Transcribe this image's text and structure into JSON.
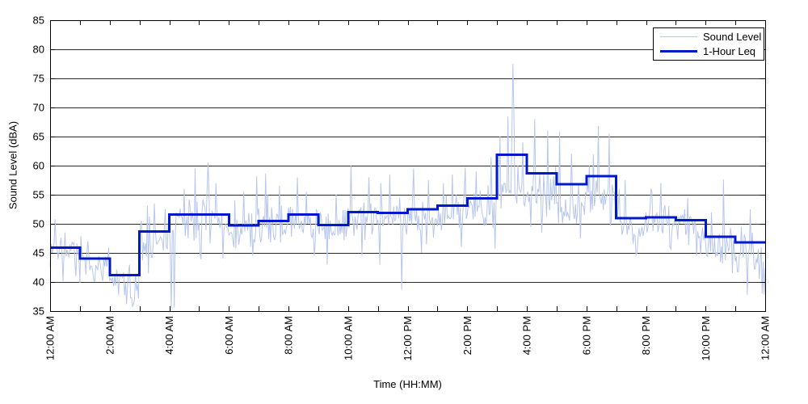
{
  "chart_data": {
    "type": "line",
    "title": "",
    "xlabel": "Time (HH:MM)",
    "ylabel": "Sound Level (dBA)",
    "ylim": [
      35,
      85
    ],
    "xlim_hours": [
      0,
      24
    ],
    "y_ticks": [
      35,
      40,
      45,
      50,
      55,
      60,
      65,
      70,
      75,
      80,
      85
    ],
    "x_tick_every_hours": 1,
    "x_label_every_hours": 2,
    "x_tick_labels": [
      "12:00 AM",
      "2:00 AM",
      "4:00 AM",
      "6:00 AM",
      "8:00 AM",
      "10:00 AM",
      "12:00 PM",
      "2:00 PM",
      "4:00 PM",
      "6:00 PM",
      "8:00 PM",
      "10:00 PM",
      "12:00 AM"
    ],
    "grid": "horizontal-solid",
    "legend_position": "top-right",
    "legend": [
      {
        "label": "Sound Level",
        "color": "#b7c6f0",
        "line_width": 1
      },
      {
        "label": "1-Hour Leq",
        "color": "#0018cc",
        "line_width": 3
      }
    ],
    "series": [
      {
        "name": "Sound Level",
        "type": "noisy-trace",
        "synthesis": {
          "seed": 7,
          "samples_per_hour": 30,
          "hourly_mean": [
            45.2,
            43.2,
            39.6,
            47.2,
            49.6,
            50.2,
            48.8,
            49.5,
            50.6,
            48.8,
            50.8,
            50.9,
            51.6,
            52.2,
            52.8,
            55.6,
            55.0,
            53.8,
            55.0,
            49.9,
            50.2,
            49.2,
            46.3,
            44.4
          ],
          "hourly_amp": [
            2.2,
            2.0,
            2.2,
            2.8,
            3.0,
            2.6,
            2.4,
            2.4,
            2.4,
            2.4,
            2.6,
            2.6,
            2.4,
            2.4,
            2.6,
            3.4,
            3.2,
            2.8,
            2.8,
            2.4,
            2.2,
            2.2,
            2.2,
            2.6
          ],
          "spikes": [
            [
              0.15,
              50.8
            ],
            [
              0.5,
              48.5
            ],
            [
              0.85,
              41.0
            ],
            [
              1.25,
              47.0
            ],
            [
              1.75,
              40.2
            ],
            [
              2.3,
              37.8
            ],
            [
              2.55,
              36.2
            ],
            [
              2.75,
              35.8
            ],
            [
              2.95,
              37.2
            ],
            [
              3.05,
              50.5
            ],
            [
              3.3,
              41.5
            ],
            [
              3.5,
              53.5
            ],
            [
              3.85,
              52.5
            ],
            [
              4.08,
              35.2
            ],
            [
              4.15,
              35.6
            ],
            [
              4.5,
              56.0
            ],
            [
              4.85,
              59.5
            ],
            [
              5.3,
              60.5
            ],
            [
              5.55,
              57.0
            ],
            [
              5.8,
              44.0
            ],
            [
              6.2,
              54.0
            ],
            [
              6.5,
              55.5
            ],
            [
              6.8,
              44.5
            ],
            [
              7.3,
              55.0
            ],
            [
              7.7,
              56.5
            ],
            [
              8.3,
              58.0
            ],
            [
              8.6,
              55.5
            ],
            [
              8.85,
              44.5
            ],
            [
              9.3,
              43.0
            ],
            [
              9.6,
              55.0
            ],
            [
              10.1,
              60.0
            ],
            [
              10.45,
              44.5
            ],
            [
              10.7,
              58.0
            ],
            [
              11.1,
              57.0
            ],
            [
              11.4,
              58.5
            ],
            [
              11.8,
              38.7
            ],
            [
              12.2,
              59.5
            ],
            [
              12.45,
              45.0
            ],
            [
              12.7,
              57.5
            ],
            [
              13.2,
              57.0
            ],
            [
              13.5,
              58.5
            ],
            [
              13.8,
              46.0
            ],
            [
              14.3,
              59.0
            ],
            [
              14.8,
              61.5
            ],
            [
              15.1,
              65.0
            ],
            [
              15.35,
              68.5
            ],
            [
              15.5,
              65.5
            ],
            [
              15.53,
              77.5
            ],
            [
              15.57,
              69.0
            ],
            [
              15.7,
              60.0
            ],
            [
              15.85,
              64.0
            ],
            [
              16.25,
              68.0
            ],
            [
              16.5,
              48.5
            ],
            [
              16.7,
              66.0
            ],
            [
              17.1,
              65.8
            ],
            [
              17.5,
              62.0
            ],
            [
              17.8,
              47.5
            ],
            [
              18.1,
              60.0
            ],
            [
              18.4,
              66.8
            ],
            [
              18.75,
              65.5
            ],
            [
              19.1,
              56.0
            ],
            [
              19.3,
              57.5
            ],
            [
              19.7,
              45.0
            ],
            [
              20.2,
              55.5
            ],
            [
              20.5,
              57.0
            ],
            [
              20.8,
              46.0
            ],
            [
              21.4,
              54.5
            ],
            [
              21.7,
              44.5
            ],
            [
              22.2,
              52.0
            ],
            [
              22.6,
              57.6
            ],
            [
              22.9,
              41.5
            ],
            [
              23.2,
              49.5
            ],
            [
              23.5,
              52.5
            ],
            [
              23.8,
              40.5
            ],
            [
              23.9,
              38.0
            ],
            [
              23.97,
              37.8
            ]
          ]
        }
      },
      {
        "name": "1-Hour Leq",
        "type": "step-hourly",
        "hours": [
          0,
          1,
          2,
          3,
          4,
          5,
          6,
          7,
          8,
          9,
          10,
          11,
          12,
          13,
          14,
          15,
          16,
          17,
          18,
          19,
          20,
          21,
          22,
          23
        ],
        "values": [
          45.9,
          44.0,
          41.2,
          48.7,
          51.6,
          51.6,
          49.7,
          50.5,
          51.6,
          49.8,
          52.0,
          51.9,
          52.5,
          53.1,
          54.4,
          61.9,
          58.7,
          56.8,
          58.2,
          51.0,
          51.1,
          50.6,
          47.8,
          46.8
        ]
      }
    ]
  },
  "colors": {
    "background": "#ffffff",
    "sound_level_line": "#b7c6f0",
    "leq_line": "#0018cc",
    "grid_line": "#2a2a2a",
    "axis_line": "#000000",
    "text": "#000000"
  }
}
